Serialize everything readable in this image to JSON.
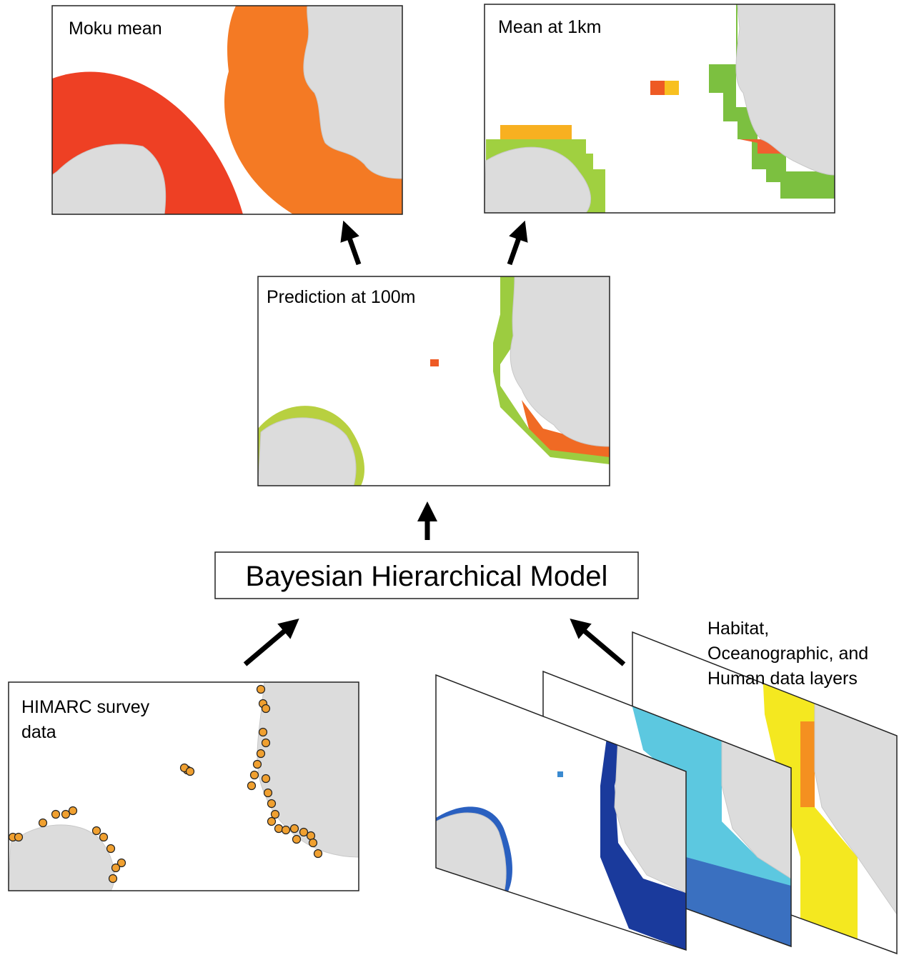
{
  "panels": [
    {
      "label": "Moku mean"
    },
    {
      "label": "Mean at 1km"
    },
    {
      "label": "Prediction at 100m"
    }
  ],
  "model": {
    "label": "Bayesian Hierarchical Model"
  },
  "survey": {
    "label": [
      "HIMARC survey",
      "data"
    ]
  },
  "layers": {
    "label": [
      "Habitat,",
      "Oceanographic, and",
      "Human data layers"
    ]
  }
}
